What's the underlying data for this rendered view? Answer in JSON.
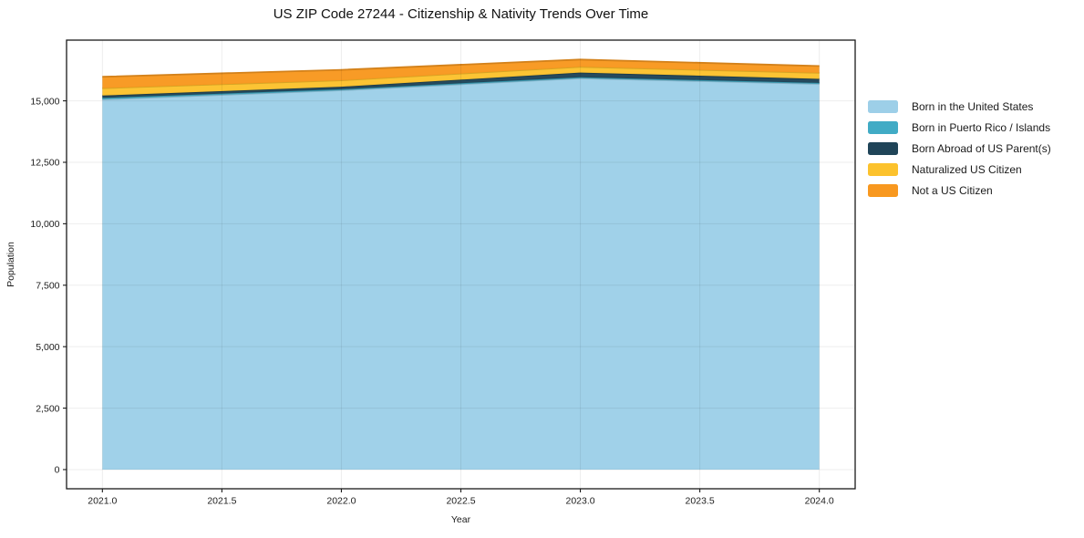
{
  "title": "US ZIP Code 27244 - Citizenship & Nativity Trends Over Time",
  "chart_data": {
    "type": "area",
    "stacked": true,
    "title": "US ZIP Code 27244 - Citizenship & Nativity Trends Over Time",
    "xlabel": "Year",
    "ylabel": "Population",
    "x": [
      2021,
      2022,
      2023,
      2024
    ],
    "series": [
      {
        "name": "Born in the United States",
        "color": "#9dcfe8",
        "values": [
          15060,
          15430,
          15920,
          15690
        ]
      },
      {
        "name": "Born in Puerto Rico / Islands",
        "color": "#41abc5",
        "values": [
          60,
          40,
          40,
          40
        ]
      },
      {
        "name": "Born Abroad of US Parent(s)",
        "color": "#1f4458",
        "values": [
          95,
          105,
          190,
          165
        ]
      },
      {
        "name": "Naturalized US Citizen",
        "color": "#fcc22d",
        "values": [
          300,
          260,
          235,
          245
        ]
      },
      {
        "name": "Not a US Citizen",
        "color": "#f8981f",
        "values": [
          465,
          425,
          295,
          275
        ]
      }
    ],
    "xlim": [
      2020.85,
      2024.15
    ],
    "ylim": [
      -780,
      17470
    ],
    "x_ticks": [
      2021.0,
      2021.5,
      2022.0,
      2022.5,
      2023.0,
      2023.5,
      2024.0
    ],
    "x_tick_labels": [
      "2021.0",
      "2021.5",
      "2022.0",
      "2022.5",
      "2023.0",
      "2023.5",
      "2024.0"
    ],
    "y_ticks": [
      0,
      2500,
      5000,
      7500,
      10000,
      12500,
      15000
    ],
    "y_tick_labels": [
      "0",
      "2,500",
      "5,000",
      "7,500",
      "10,000",
      "12,500",
      "15,000"
    ],
    "grid": true,
    "legend_position": "outside-right",
    "frame_color": "#1a1a1a",
    "grid_color": "rgba(0,0,0,0.07)"
  }
}
